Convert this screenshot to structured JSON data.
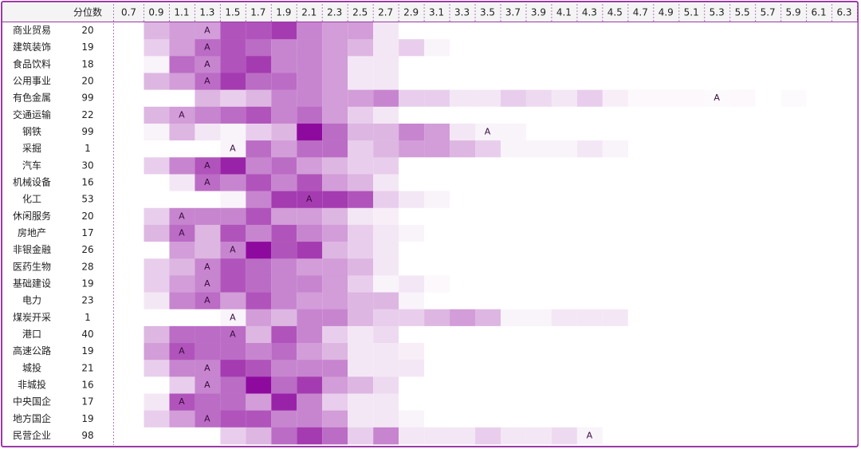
{
  "chart_data": {
    "type": "heatmap",
    "color": "#8e0a9e",
    "zlim": [
      0,
      10
    ],
    "quantile_header": "分位数",
    "x": [
      0.7,
      0.9,
      1.1,
      1.3,
      1.5,
      1.7,
      1.9,
      2.1,
      2.3,
      2.5,
      2.7,
      2.9,
      3.1,
      3.3,
      3.5,
      3.7,
      3.9,
      4.1,
      4.3,
      4.5,
      4.7,
      4.9,
      5.1,
      5.3,
      5.5,
      5.7,
      5.9,
      6.1,
      6.3
    ],
    "rows": [
      {
        "name": "商业贸易",
        "quantile": 20,
        "marker": "A",
        "marker_at": 1.3,
        "values": [
          0,
          3,
          4,
          4,
          7,
          7,
          8,
          5,
          4,
          4,
          1,
          0,
          0,
          0,
          0,
          0,
          0,
          0,
          0,
          0,
          0,
          0,
          0,
          0,
          0,
          0,
          0,
          0,
          0
        ]
      },
      {
        "name": "建筑装饰",
        "quantile": 19,
        "marker": "A",
        "marker_at": 1.3,
        "values": [
          0,
          2,
          4,
          6,
          7,
          6,
          5,
          5,
          4,
          3,
          1,
          2,
          0.5,
          0,
          0,
          0,
          0,
          0,
          0,
          0,
          0,
          0,
          0,
          0,
          0,
          0,
          0,
          0,
          0
        ]
      },
      {
        "name": "食品饮料",
        "quantile": 18,
        "marker": "A",
        "marker_at": 1.3,
        "values": [
          0,
          0.5,
          6,
          5,
          7,
          8,
          5,
          5,
          4,
          1,
          1,
          0,
          0,
          0,
          0,
          0,
          0,
          0,
          0,
          0,
          0,
          0,
          0,
          0,
          0,
          0,
          0,
          0,
          0
        ]
      },
      {
        "name": "公用事业",
        "quantile": 20,
        "marker": "A",
        "marker_at": 1.3,
        "values": [
          0,
          3,
          4,
          6,
          8,
          6,
          6,
          5,
          4,
          1,
          1,
          0,
          0,
          0,
          0,
          0,
          0,
          0,
          0,
          0,
          0,
          0,
          0,
          0,
          0,
          0,
          0,
          0,
          0
        ]
      },
      {
        "name": "有色金属",
        "quantile": 99,
        "marker": "A",
        "marker_at": 5.3,
        "values": [
          0,
          0,
          0,
          3,
          2,
          3,
          5,
          5,
          4,
          4,
          5,
          2,
          2,
          1,
          1,
          2,
          1.5,
          1,
          2,
          0.7,
          0.3,
          0.3,
          0.3,
          0.2,
          0.3,
          0,
          0.2,
          0,
          0
        ]
      },
      {
        "name": "交通运输",
        "quantile": 22,
        "marker": "A",
        "marker_at": 1.1,
        "values": [
          0,
          3,
          4,
          5,
          6,
          7,
          5,
          6,
          4,
          2,
          1,
          0,
          0,
          0,
          0,
          0,
          0,
          0,
          0,
          0,
          0,
          0,
          0,
          0,
          0,
          0,
          0,
          0,
          0
        ]
      },
      {
        "name": "钢铁",
        "quantile": 99,
        "marker": "A",
        "marker_at": 3.5,
        "values": [
          0,
          0.5,
          3,
          1,
          0.5,
          2,
          3,
          10,
          6,
          3,
          3,
          5,
          4,
          1,
          0.5,
          0.5,
          0,
          0,
          0,
          0,
          0,
          0,
          0,
          0,
          0,
          0,
          0,
          0,
          0
        ]
      },
      {
        "name": "采掘",
        "quantile": 1,
        "marker": "A",
        "marker_at": 1.5,
        "values": [
          0,
          0,
          0,
          0,
          0.5,
          6,
          4,
          6,
          6,
          2,
          3,
          4,
          4,
          3,
          2,
          0.5,
          0.5,
          0.5,
          1,
          0.5,
          0,
          0,
          0,
          0,
          0,
          0,
          0,
          0,
          0
        ]
      },
      {
        "name": "汽车",
        "quantile": 30,
        "marker": "A",
        "marker_at": 1.3,
        "values": [
          0,
          2,
          5,
          7,
          9,
          5,
          6,
          4,
          3,
          2,
          2,
          0,
          0,
          0,
          0,
          0,
          0,
          0,
          0,
          0,
          0,
          0,
          0,
          0,
          0,
          0,
          0,
          0,
          0
        ]
      },
      {
        "name": "机械设备",
        "quantile": 16,
        "marker": "A",
        "marker_at": 1.3,
        "values": [
          0,
          0,
          1,
          6,
          5,
          7,
          5,
          7,
          4,
          3,
          1,
          0,
          0,
          0,
          0,
          0,
          0,
          0,
          0,
          0,
          0,
          0,
          0,
          0,
          0,
          0,
          0,
          0,
          0
        ]
      },
      {
        "name": "化工",
        "quantile": 53,
        "marker": "A",
        "marker_at": 2.1,
        "values": [
          0,
          0,
          0,
          0,
          0.5,
          5,
          8,
          8,
          8,
          7,
          2,
          1,
          0.5,
          0,
          0,
          0,
          0,
          0,
          0,
          0,
          0,
          0,
          0,
          0,
          0,
          0,
          0,
          0,
          0
        ]
      },
      {
        "name": "休闲服务",
        "quantile": 20,
        "marker": "A",
        "marker_at": 1.1,
        "values": [
          0,
          2,
          5,
          5,
          5,
          7,
          4,
          4,
          3,
          1,
          0.7,
          0,
          0,
          0,
          0,
          0,
          0,
          0,
          0,
          0,
          0,
          0,
          0,
          0,
          0,
          0,
          0,
          0,
          0
        ]
      },
      {
        "name": "房地产",
        "quantile": 17,
        "marker": "A",
        "marker_at": 1.1,
        "values": [
          0,
          3,
          6,
          3,
          7,
          5,
          7,
          5,
          4,
          2,
          1,
          0.5,
          0,
          0,
          0,
          0,
          0,
          0,
          0,
          0,
          0,
          0,
          0,
          0,
          0,
          0,
          0,
          0,
          0
        ]
      },
      {
        "name": "非银金融",
        "quantile": 26,
        "marker": "A",
        "marker_at": 1.5,
        "values": [
          0,
          0,
          4,
          3,
          5,
          10,
          7,
          8,
          3,
          2,
          1,
          0,
          0,
          0,
          0,
          0,
          0,
          0,
          0,
          0,
          0,
          0,
          0,
          0,
          0,
          0,
          0,
          0,
          0
        ]
      },
      {
        "name": "医药生物",
        "quantile": 28,
        "marker": "A",
        "marker_at": 1.3,
        "values": [
          0,
          2,
          3,
          5,
          7,
          6,
          5,
          4,
          4,
          3,
          1,
          0,
          0,
          0,
          0,
          0,
          0,
          0,
          0,
          0,
          0,
          0,
          0,
          0,
          0,
          0,
          0,
          0,
          0
        ]
      },
      {
        "name": "基础建设",
        "quantile": 19,
        "marker": "A",
        "marker_at": 1.3,
        "values": [
          0,
          2,
          4,
          5,
          7,
          6,
          5,
          5,
          4,
          2,
          0.5,
          1,
          0.3,
          0,
          0,
          0,
          0,
          0,
          0,
          0,
          0,
          0,
          0,
          0,
          0,
          0,
          0,
          0,
          0
        ]
      },
      {
        "name": "电力",
        "quantile": 23,
        "marker": "A",
        "marker_at": 1.3,
        "values": [
          0,
          1,
          5,
          6,
          4,
          7,
          5,
          4,
          4,
          3,
          3,
          0.5,
          0,
          0,
          0,
          0,
          0,
          0,
          0,
          0,
          0,
          0,
          0,
          0,
          0,
          0,
          0,
          0,
          0
        ]
      },
      {
        "name": "煤炭开采",
        "quantile": 1,
        "marker": "A",
        "marker_at": 1.5,
        "values": [
          0,
          0,
          0,
          0,
          0.5,
          4,
          3,
          5,
          5,
          3,
          2,
          2,
          3,
          4,
          3,
          0.5,
          0.5,
          1,
          1,
          1,
          0,
          0,
          0,
          0,
          0,
          0,
          0,
          0,
          0
        ]
      },
      {
        "name": "港口",
        "quantile": 40,
        "marker": "A",
        "marker_at": 1.5,
        "values": [
          0,
          3,
          6,
          6,
          6,
          3,
          7,
          5,
          2,
          1,
          1.5,
          0,
          0,
          0,
          0,
          0,
          0,
          0,
          0,
          0,
          0,
          0,
          0,
          0,
          0,
          0,
          0,
          0,
          0
        ]
      },
      {
        "name": "高速公路",
        "quantile": 19,
        "marker": "A",
        "marker_at": 1.1,
        "values": [
          0,
          4,
          7,
          6,
          6,
          5,
          6,
          4,
          3,
          1,
          1,
          0.7,
          0,
          0,
          0,
          0,
          0,
          0,
          0,
          0,
          0,
          0,
          0,
          0,
          0,
          0,
          0,
          0,
          0
        ]
      },
      {
        "name": "城投",
        "quantile": 21,
        "marker": "A",
        "marker_at": 1.3,
        "values": [
          0,
          2,
          5,
          5,
          8,
          7,
          5,
          5,
          5,
          1,
          1,
          1,
          0,
          0,
          0,
          0,
          0,
          0,
          0,
          0,
          0,
          0,
          0,
          0,
          0,
          0,
          0,
          0,
          0
        ]
      },
      {
        "name": "非城投",
        "quantile": 16,
        "marker": "A",
        "marker_at": 1.3,
        "values": [
          0,
          0,
          2,
          5,
          6,
          10,
          6,
          8,
          4,
          3,
          1.5,
          0,
          0,
          0,
          0,
          0,
          0,
          0,
          0,
          0,
          0,
          0,
          0,
          0,
          0,
          0,
          0,
          0,
          0
        ]
      },
      {
        "name": "中央国企",
        "quantile": 17,
        "marker": "A",
        "marker_at": 1.1,
        "values": [
          0,
          1,
          7,
          6,
          6,
          4,
          9,
          5,
          2,
          1,
          1,
          0,
          0,
          0,
          0,
          0,
          0,
          0,
          0,
          0,
          0,
          0,
          0,
          0,
          0,
          0,
          0,
          0,
          0
        ]
      },
      {
        "name": "地方国企",
        "quantile": 19,
        "marker": "A",
        "marker_at": 1.3,
        "values": [
          0,
          2,
          4,
          6,
          7,
          7,
          5,
          5,
          4,
          1,
          1,
          0.5,
          0,
          0,
          0,
          0,
          0,
          0,
          0,
          0,
          0,
          0,
          0,
          0,
          0,
          0,
          0,
          0,
          0
        ]
      },
      {
        "name": "民营企业",
        "quantile": 98,
        "marker": "A",
        "marker_at": 4.3,
        "values": [
          0,
          0,
          0,
          0,
          2,
          3,
          6,
          8,
          6,
          2,
          5,
          1,
          1,
          1,
          2,
          1,
          1,
          1.5,
          0.5,
          0,
          0,
          0,
          0,
          0,
          0,
          0,
          0,
          0,
          0
        ]
      }
    ]
  }
}
